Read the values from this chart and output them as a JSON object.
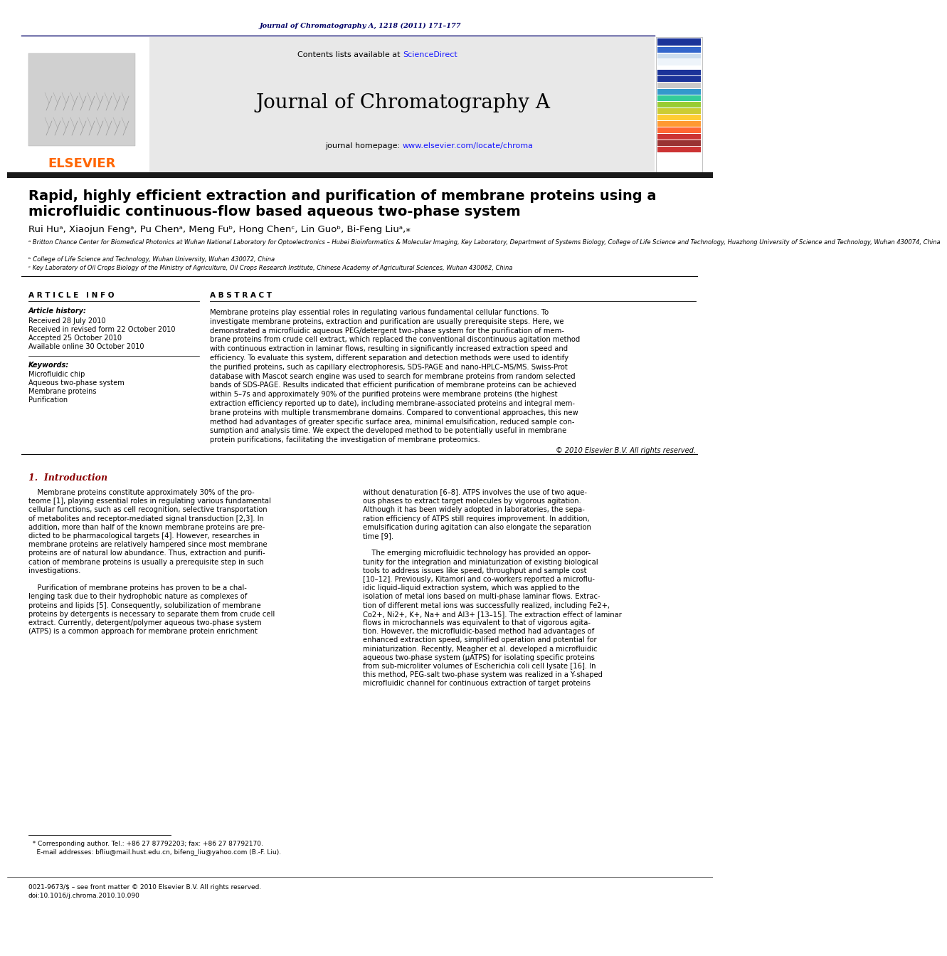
{
  "header_journal_ref": "Journal of Chromatography A, 1218 (2011) 171–177",
  "journal_name": "Journal of Chromatography A",
  "contents_text": "Contents lists available at ",
  "science_direct": "ScienceDirect",
  "homepage_text": "journal homepage: ",
  "homepage_url": "www.elsevier.com/locate/chroma",
  "elsevier_text": "ELSEVIER",
  "title_line1": "Rapid, highly efficient extraction and purification of membrane proteins using a",
  "title_line2": "microfluidic continuous-flow based aqueous two-phase system",
  "authors": "Rui Huᵃ, Xiaojun Fengᵃ, Pu Chenᵃ, Meng Fuᵇ, Hong Chenᶜ, Lin Guoᵇ, Bi-Feng Liuᵃ,⁎",
  "affil_a": "ᵃ Britton Chance Center for Biomedical Photonics at Wuhan National Laboratory for Optoelectronics – Hubei Bioinformatics & Molecular Imaging, Key Laboratory, Department of Systems Biology, College of Life Science and Technology, Huazhong University of Science and Technology, Wuhan 430074, China",
  "affil_b": "ᵇ College of Life Science and Technology, Wuhan University, Wuhan 430072, China",
  "affil_c": "ᶜ Key Laboratory of Oil Crops Biology of the Ministry of Agriculture, Oil Crops Research Institute, Chinese Academy of Agricultural Sciences, Wuhan 430062, China",
  "article_info_title": "A R T I C L E   I N F O",
  "article_history_label": "Article history:",
  "history_lines": [
    "Received 28 July 2010",
    "Received in revised form 22 October 2010",
    "Accepted 25 October 2010",
    "Available online 30 October 2010"
  ],
  "keywords_label": "Keywords:",
  "keywords": [
    "Microfluidic chip",
    "Aqueous two-phase system",
    "Membrane proteins",
    "Purification"
  ],
  "abstract_title": "A B S T R A C T",
  "abstract_lines": [
    "Membrane proteins play essential roles in regulating various fundamental cellular functions. To",
    "investigate membrane proteins, extraction and purification are usually prerequisite steps. Here, we",
    "demonstrated a microfluidic aqueous PEG/detergent two-phase system for the purification of mem-",
    "brane proteins from crude cell extract, which replaced the conventional discontinuous agitation method",
    "with continuous extraction in laminar flows, resulting in significantly increased extraction speed and",
    "efficiency. To evaluate this system, different separation and detection methods were used to identify",
    "the purified proteins, such as capillary electrophoresis, SDS-PAGE and nano-HPLC–MS/MS. Swiss-Prot",
    "database with Mascot search engine was used to search for membrane proteins from random selected",
    "bands of SDS-PAGE. Results indicated that efficient purification of membrane proteins can be achieved",
    "within 5–7s and approximately 90% of the purified proteins were membrane proteins (the highest",
    "extraction efficiency reported up to date), including membrane-associated proteins and integral mem-",
    "brane proteins with multiple transmembrane domains. Compared to conventional approaches, this new",
    "method had advantages of greater specific surface area, minimal emulsification, reduced sample con-",
    "sumption and analysis time. We expect the developed method to be potentially useful in membrane",
    "protein purifications, facilitating the investigation of membrane proteomics."
  ],
  "copyright": "© 2010 Elsevier B.V. All rights reserved.",
  "intro_title": "1.  Introduction",
  "intro_col1_lines": [
    "    Membrane proteins constitute approximately 30% of the pro-",
    "teome [1], playing essential roles in regulating various fundamental",
    "cellular functions, such as cell recognition, selective transportation",
    "of metabolites and receptor-mediated signal transduction [2,3]. In",
    "addition, more than half of the known membrane proteins are pre-",
    "dicted to be pharmacological targets [4]. However, researches in",
    "membrane proteins are relatively hampered since most membrane",
    "proteins are of natural low abundance. Thus, extraction and purifi-",
    "cation of membrane proteins is usually a prerequisite step in such",
    "investigations.",
    "",
    "    Purification of membrane proteins has proven to be a chal-",
    "lenging task due to their hydrophobic nature as complexes of",
    "proteins and lipids [5]. Consequently, solubilization of membrane",
    "proteins by detergents is necessary to separate them from crude cell",
    "extract. Currently, detergent/polymer aqueous two-phase system",
    "(ATPS) is a common approach for membrane protein enrichment"
  ],
  "intro_col2_lines": [
    "without denaturation [6–8]. ATPS involves the use of two aque-",
    "ous phases to extract target molecules by vigorous agitation.",
    "Although it has been widely adopted in laboratories, the sepa-",
    "ration efficiency of ATPS still requires improvement. In addition,",
    "emulsification during agitation can also elongate the separation",
    "time [9].",
    "",
    "    The emerging microfluidic technology has provided an oppor-",
    "tunity for the integration and miniaturization of existing biological",
    "tools to address issues like speed, throughput and sample cost",
    "[10–12]. Previously, Kitamori and co-workers reported a microflu-",
    "idic liquid–liquid extraction system, which was applied to the",
    "isolation of metal ions based on multi-phase laminar flows. Extrac-",
    "tion of different metal ions was successfully realized, including Fe2+,",
    "Co2+, Ni2+, K+, Na+ and Al3+ [13–15]. The extraction effect of laminar",
    "flows in microchannels was equivalent to that of vigorous agita-",
    "tion. However, the microfluidic-based method had advantages of",
    "enhanced extraction speed, simplified operation and potential for",
    "miniaturization. Recently, Meagher et al. developed a microfluidic",
    "aqueous two-phase system (μATPS) for isolating specific proteins",
    "from sub-microliter volumes of Escherichia coli cell lysate [16]. In",
    "this method, PEG-salt two-phase system was realized in a Y-shaped",
    "microfluidic channel for continuous extraction of target proteins"
  ],
  "footnote_star": "  * Corresponding author. Tel.: +86 27 87792203; fax: +86 27 87792170.",
  "footnote_email": "    E-mail addresses: bfliu@mail.hust.edu.cn, bifeng_liu@yahoo.com (B.-F. Liu).",
  "footnote_issn": "0021-9673/$ – see front matter © 2010 Elsevier B.V. All rights reserved.",
  "footnote_doi": "doi:10.1016/j.chroma.2010.10.090",
  "bg_color": "#ffffff",
  "dark_navy": "#000066",
  "orange": "#FF6600",
  "link_blue": "#1a1aff",
  "dark_red": "#8B0000",
  "black": "#000000",
  "gray_header": "#e8e8e8",
  "strip_colors": [
    "#1a3399",
    "#1a3399",
    "#c8c8c8",
    "#3399cc",
    "#33cc99",
    "#99cc33",
    "#cccc33",
    "#ffcc33",
    "#ff9933",
    "#ff6633",
    "#cc3333",
    "#993333",
    "#cc3333"
  ]
}
